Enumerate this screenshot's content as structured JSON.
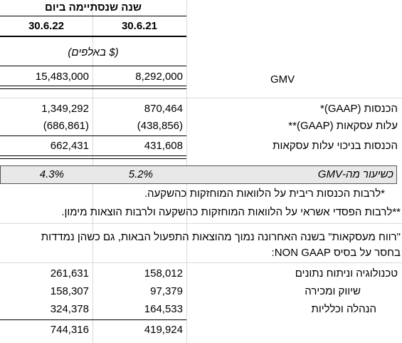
{
  "header": {
    "title": "שנה  שנסתיימה ביום",
    "columns": [
      "30.6.22",
      "30.6.21"
    ],
    "unit": "($ באלפים)"
  },
  "table": {
    "rows": [
      [
        "15,483,000",
        "8,292,000",
        "GMV"
      ],
      [
        "1,349,292",
        "870,464",
        "הכנסות (GAAP)*"
      ],
      [
        "(686,861)",
        "(438,856)",
        "עלות עסקאות (GAAP)**"
      ],
      [
        "662,431",
        "431,608",
        "הכנסות בניכוי עלות עסקאות"
      ],
      [
        "4.3%",
        "5.2%",
        "כשיעור מה-GMV"
      ]
    ]
  },
  "notes": [
    "*לרבות הכנסות ריבית על הלוואות המוחזקות כהשקעה.",
    "**לרבות הפסדי אשראי על הלוואות המוחזקות כהשקעה ולרבות הוצאות מימון."
  ],
  "paragraph": [
    "\"רווח מעסקאות\" בשנה האחרונה נמוך מהוצאות התפעול הבאות, גם כשהן נמדדות",
    "בחסר על בסיס NON GAAP:"
  ],
  "expenses": {
    "rows": [
      [
        "261,631",
        "158,012",
        "טכנולוגיה וניתוח נתונים"
      ],
      [
        "158,307",
        "97,379",
        "שיווק ומכירה"
      ],
      [
        "324,378",
        "164,533",
        "הנהלה וכלליות"
      ],
      [
        "744,316",
        "419,924"
      ]
    ]
  }
}
